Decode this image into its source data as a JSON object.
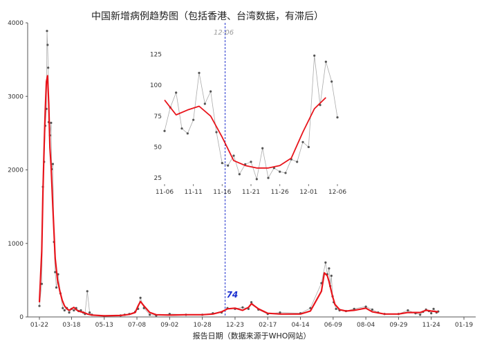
{
  "chart_data": [
    {
      "id": "main",
      "type": "line",
      "title": "中国新增病例趋势图（包括香港、台湾数据，有滞后）",
      "xlabel": "报告日期（数据来源于WHO网站）",
      "ylabel": "",
      "ylim": [
        0,
        4000
      ],
      "y_ticks": [
        0,
        1000,
        2000,
        3000,
        4000
      ],
      "x_ticks": [
        "01-22",
        "03-18",
        "05-13",
        "07-08",
        "09-02",
        "10-28",
        "12-23",
        "02-17",
        "04-14",
        "06-09",
        "08-04",
        "09-29",
        "11-24",
        "01-19"
      ],
      "reference_line": "12-06",
      "last_value": "74",
      "colors": {
        "daily": "#aaaaaa",
        "points": "#555555",
        "trend": "#e8141b",
        "reference": "#2233cc"
      },
      "series": [
        {
          "kind": "daily",
          "x": [
            "01-22",
            "01-26",
            "01-28",
            "01-30",
            "02-01",
            "02-03",
            "02-04",
            "02-05",
            "02-06",
            "02-07",
            "02-09",
            "02-11",
            "02-12",
            "02-14",
            "02-16",
            "02-18",
            "02-20",
            "02-23",
            "02-27",
            "03-03",
            "03-06",
            "03-10",
            "03-14",
            "03-18",
            "03-22",
            "03-26",
            "03-30",
            "04-03",
            "04-07",
            "04-10",
            "04-14",
            "04-18",
            "04-22",
            "05-13",
            "06-10",
            "06-17",
            "06-25",
            "07-05",
            "07-10",
            "07-14",
            "07-20",
            "07-30",
            "08-10",
            "09-02",
            "09-30",
            "10-28",
            "11-15",
            "11-30",
            "12-10",
            "12-23",
            "01-05",
            "01-15",
            "01-20",
            "02-01",
            "02-17",
            "03-10",
            "04-14",
            "05-01",
            "05-20",
            "05-27",
            "05-30",
            "06-02",
            "06-04",
            "06-06",
            "06-08",
            "06-10",
            "06-14",
            "06-20",
            "07-01",
            "07-15",
            "08-04",
            "08-15",
            "08-25",
            "09-05",
            "09-29",
            "10-15",
            "10-28",
            "11-05",
            "11-10",
            "11-15",
            "11-20",
            "11-24",
            "11-28",
            "12-03",
            "12-06"
          ],
          "y": [
            150,
            450,
            1770,
            2110,
            2600,
            2830,
            3890,
            3700,
            3390,
            2650,
            2470,
            2640,
            2010,
            2080,
            1020,
            610,
            400,
            580,
            320,
            120,
            90,
            120,
            60,
            110,
            90,
            120,
            80,
            90,
            60,
            40,
            350,
            60,
            30,
            10,
            20,
            30,
            40,
            70,
            110,
            260,
            120,
            30,
            20,
            40,
            30,
            30,
            50,
            60,
            120,
            110,
            130,
            110,
            200,
            100,
            40,
            60,
            50,
            120,
            460,
            740,
            580,
            660,
            420,
            560,
            280,
            200,
            110,
            90,
            80,
            110,
            140,
            100,
            60,
            40,
            40,
            90,
            50,
            30,
            70,
            100,
            80,
            50,
            110,
            60,
            74
          ]
        },
        {
          "kind": "trend",
          "x": [
            "01-22",
            "01-26",
            "01-28",
            "01-30",
            "02-01",
            "02-03",
            "02-05",
            "02-07",
            "02-09",
            "02-11",
            "02-14",
            "02-18",
            "02-22",
            "02-26",
            "03-02",
            "03-06",
            "03-10",
            "03-14",
            "03-18",
            "03-22",
            "03-26",
            "03-30",
            "04-03",
            "04-08",
            "04-14",
            "04-22",
            "05-13",
            "06-10",
            "06-25",
            "07-05",
            "07-10",
            "07-14",
            "07-20",
            "07-30",
            "08-10",
            "09-02",
            "09-30",
            "10-28",
            "11-15",
            "11-30",
            "12-10",
            "12-23",
            "01-05",
            "01-15",
            "01-20",
            "02-01",
            "02-17",
            "03-10",
            "04-14",
            "05-01",
            "05-20",
            "05-25",
            "05-30",
            "06-02",
            "06-05",
            "06-08",
            "06-12",
            "06-20",
            "07-01",
            "07-15",
            "08-04",
            "08-15",
            "09-05",
            "09-29",
            "10-15",
            "11-05",
            "11-15",
            "11-24",
            "12-06"
          ],
          "y": [
            200,
            900,
            1700,
            2300,
            2800,
            3200,
            3280,
            2900,
            2300,
            2050,
            1500,
            800,
            500,
            350,
            230,
            150,
            110,
            90,
            110,
            130,
            100,
            80,
            70,
            60,
            40,
            25,
            15,
            20,
            35,
            60,
            150,
            210,
            150,
            60,
            30,
            25,
            30,
            30,
            40,
            70,
            110,
            120,
            90,
            130,
            180,
            110,
            50,
            40,
            40,
            80,
            350,
            600,
            560,
            480,
            380,
            280,
            170,
            100,
            80,
            90,
            120,
            70,
            40,
            40,
            60,
            60,
            90,
            80,
            70
          ]
        }
      ]
    },
    {
      "id": "inset",
      "type": "line",
      "title": "",
      "xlabel": "",
      "ylabel": "",
      "ylim": [
        20,
        127
      ],
      "y_ticks": [
        25,
        50,
        75,
        100,
        125
      ],
      "x_ticks": [
        "11-06",
        "11-11",
        "11-16",
        "11-21",
        "11-26",
        "12-01",
        "12-06"
      ],
      "series": [
        {
          "kind": "daily",
          "x": [
            "11-06",
            "11-07",
            "11-08",
            "11-09",
            "11-10",
            "11-11",
            "11-12",
            "11-13",
            "11-14",
            "11-15",
            "11-16",
            "11-17",
            "11-18",
            "11-19",
            "11-20",
            "11-21",
            "11-22",
            "11-23",
            "11-24",
            "11-25",
            "11-26",
            "11-27",
            "11-28",
            "11-29",
            "11-30",
            "12-01",
            "12-02",
            "12-03",
            "12-04",
            "12-05",
            "12-06"
          ],
          "y": [
            63,
            82,
            94,
            65,
            61,
            72,
            110,
            85,
            95,
            62,
            37,
            35,
            43,
            28,
            36,
            38,
            24,
            49,
            25,
            33,
            30,
            29,
            40,
            38,
            54,
            50,
            124,
            84,
            119,
            103,
            74
          ]
        },
        {
          "kind": "trend",
          "x": [
            "11-06",
            "11-08",
            "11-10",
            "11-12",
            "11-14",
            "11-16",
            "11-18",
            "11-20",
            "11-22",
            "11-24",
            "11-26",
            "11-28",
            "11-30",
            "12-02",
            "12-04"
          ],
          "y": [
            88,
            76,
            80,
            83,
            75,
            58,
            39,
            35,
            33,
            33,
            35,
            41,
            62,
            81,
            90
          ]
        }
      ]
    }
  ]
}
